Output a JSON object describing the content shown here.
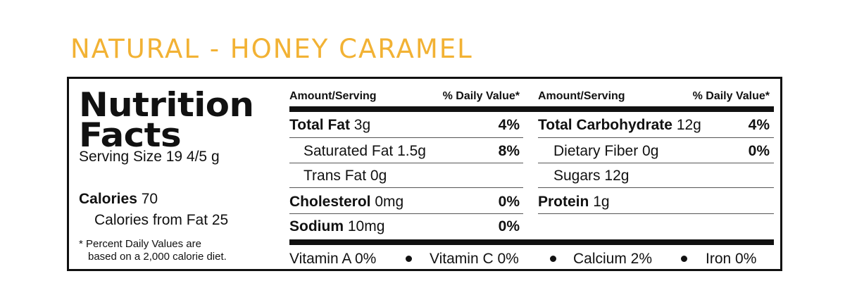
{
  "product": {
    "title": "NATURAL - HONEY CARAMEL"
  },
  "panel": {
    "heading_1": "Nutrition",
    "heading_2": "Facts",
    "serving_size": "Serving Size 19 4/5 g",
    "calories_label": "Calories",
    "calories_value": "70",
    "calories_from_fat": "Calories from Fat 25",
    "footnote_1": "* Percent Daily Values are",
    "footnote_2": "based on a 2,000 calorie diet.",
    "amount_serving_header": "Amount/Serving",
    "daily_value_header": "% Daily Value*",
    "left_rows": {
      "total_fat": {
        "label": "Total Fat",
        "amount": "3g",
        "dv": "4%"
      },
      "saturated_fat": {
        "label": "Saturated Fat",
        "amount": "1.5g",
        "dv": "8%"
      },
      "trans_fat": {
        "label": "Trans Fat",
        "amount": "0g"
      },
      "cholesterol": {
        "label": "Cholesterol",
        "amount": "0mg",
        "dv": "0%"
      },
      "sodium": {
        "label": "Sodium",
        "amount": "10mg",
        "dv": "0%"
      }
    },
    "right_rows": {
      "total_carbohydrate": {
        "label": "Total Carbohydrate",
        "amount": "12g",
        "dv": "4%"
      },
      "dietary_fiber": {
        "label": "Dietary Fiber",
        "amount": "0g",
        "dv": "0%"
      },
      "sugars": {
        "label": "Sugars",
        "amount": "12g"
      },
      "protein": {
        "label": "Protein",
        "amount": "1g"
      }
    },
    "vitamins": {
      "vitamin_a": "Vitamin A 0%",
      "vitamin_c": "Vitamin C 0%",
      "calcium": "Calcium 2%",
      "iron": "Iron 0%"
    }
  }
}
